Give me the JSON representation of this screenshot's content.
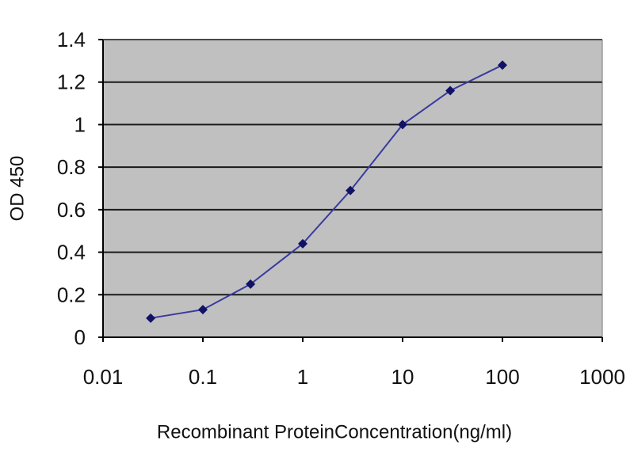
{
  "chart_data": {
    "type": "line",
    "xscale": "log",
    "xlabel": "Recombinant ProteinConcentration(ng/ml)",
    "ylabel": "OD 450",
    "xlim": [
      0.01,
      1000
    ],
    "ylim": [
      0,
      1.4
    ],
    "xticks": [
      "0.01",
      "0.1",
      "1",
      "10",
      "100",
      "1000"
    ],
    "yticks": [
      "0",
      "0.2",
      "0.4",
      "0.6",
      "0.8",
      "1",
      "1.2",
      "1.4"
    ],
    "grid": "horizontal",
    "legend": "none",
    "series": [
      {
        "x": [
          0.03,
          0.1,
          0.3,
          1,
          3,
          10,
          30,
          100
        ],
        "y": [
          0.09,
          0.13,
          0.25,
          0.44,
          0.69,
          1.0,
          1.16,
          1.28
        ]
      }
    ]
  },
  "colors": {
    "plot_area": "#c0c0c0",
    "gridline": "#1a1a1a",
    "series_line": "#3a3aa0",
    "marker": "#111166",
    "text": "#111111"
  }
}
